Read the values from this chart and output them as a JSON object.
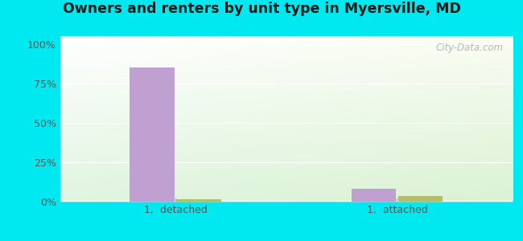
{
  "title": "Owners and renters by unit type in Myersville, MD",
  "categories": [
    "1,  detached",
    "1,  attached"
  ],
  "owner_values": [
    85,
    8
  ],
  "renter_values": [
    1.5,
    3.5
  ],
  "owner_color": "#c0a0d0",
  "renter_color": "#b8bc6a",
  "yticks": [
    0,
    25,
    50,
    75,
    100
  ],
  "ytick_labels": [
    "0%",
    "25%",
    "50%",
    "75%",
    "100%"
  ],
  "ylim": [
    0,
    105
  ],
  "background_outer": "#00e8f0",
  "watermark": "City-Data.com",
  "bar_width": 0.28,
  "group_positions": [
    0.72,
    2.1
  ]
}
